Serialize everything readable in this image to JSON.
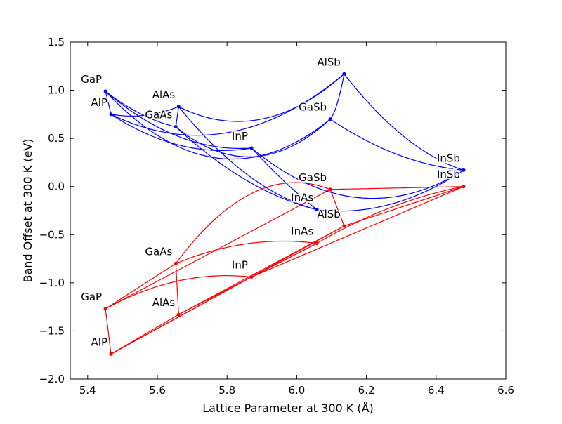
{
  "chart_data": {
    "type": "line",
    "title": "",
    "xlabel": "Lattice Parameter at 300 K (Å)",
    "ylabel": "Band Offset at 300 K (eV)",
    "xlim": [
      5.35,
      6.6
    ],
    "ylim": [
      -2.0,
      1.5
    ],
    "xticks": [
      "5.4",
      "5.6",
      "5.8",
      "6.0",
      "6.2",
      "6.4",
      "6.6"
    ],
    "yticks": [
      "−2.0",
      "−1.5",
      "−1.0",
      "−0.5",
      "0.0",
      "0.5",
      "1.0",
      "1.5"
    ],
    "xtick_values": [
      5.4,
      5.6,
      5.8,
      6.0,
      6.2,
      6.4,
      6.6
    ],
    "ytick_values": [
      -2.0,
      -1.5,
      -1.0,
      -0.5,
      0.0,
      0.5,
      1.0,
      1.5
    ],
    "grid": false,
    "colors": {
      "conduction": "#0000ff",
      "valence": "#ff0000"
    },
    "materials": [
      {
        "name": "GaP",
        "lattice": 5.451,
        "cb": 0.99,
        "vb": -1.27
      },
      {
        "name": "AlP",
        "lattice": 5.467,
        "cb": 0.75,
        "vb": -1.74
      },
      {
        "name": "AlAs",
        "lattice": 5.661,
        "cb": 0.83,
        "vb": -1.33
      },
      {
        "name": "GaAs",
        "lattice": 5.653,
        "cb": 0.62,
        "vb": -0.8
      },
      {
        "name": "InP",
        "lattice": 5.87,
        "cb": 0.4,
        "vb": -0.94
      },
      {
        "name": "InAs",
        "lattice": 6.058,
        "cb": -0.24,
        "vb": -0.59
      },
      {
        "name": "AlSb",
        "lattice": 6.136,
        "cb": 1.17,
        "vb": -0.41
      },
      {
        "name": "GaSb",
        "lattice": 6.096,
        "cb": 0.7,
        "vb": -0.03
      },
      {
        "name": "InSb",
        "lattice": 6.479,
        "cb": 0.17,
        "vb": 0.0
      }
    ],
    "alloys": [
      {
        "a": "AlAs",
        "b": "GaAs",
        "cb_bowing": 0.0,
        "vb_bowing": 0.0
      },
      {
        "a": "AlP",
        "b": "GaP",
        "cb_bowing": 0.0,
        "vb_bowing": 0.0
      },
      {
        "a": "GaP",
        "b": "InP",
        "cb_bowing": 0.7,
        "vb_bowing": -0.5
      },
      {
        "a": "AlP",
        "b": "InP",
        "cb_bowing": 0.6,
        "vb_bowing": 0.0
      },
      {
        "a": "GaAs",
        "b": "InAs",
        "cb_bowing": 0.5,
        "vb_bowing": -0.4
      },
      {
        "a": "AlAs",
        "b": "InAs",
        "cb_bowing": 0.7,
        "vb_bowing": 0.0
      },
      {
        "a": "GaSb",
        "b": "InSb",
        "cb_bowing": 0.4,
        "vb_bowing": 0.0
      },
      {
        "a": "AlSb",
        "b": "InSb",
        "cb_bowing": 0.6,
        "vb_bowing": 0.0
      },
      {
        "a": "AlSb",
        "b": "GaSb",
        "cb_bowing": 0.3,
        "vb_bowing": 0.0
      },
      {
        "a": "GaAs",
        "b": "GaP",
        "cb_bowing": 0.2,
        "vb_bowing": 0.0
      },
      {
        "a": "AlAs",
        "b": "AlP",
        "cb_bowing": 0.2,
        "vb_bowing": 0.0
      },
      {
        "a": "InAs",
        "b": "InP",
        "cb_bowing": 0.1,
        "vb_bowing": 0.0
      },
      {
        "a": "GaAs",
        "b": "GaSb",
        "cb_bowing": 1.4,
        "vb_bowing": -1.4
      },
      {
        "a": "AlAs",
        "b": "AlSb",
        "cb_bowing": 1.2,
        "vb_bowing": 0.0
      },
      {
        "a": "InAs",
        "b": "InSb",
        "cb_bowing": 0.6,
        "vb_bowing": -0.3
      },
      {
        "a": "GaP",
        "b": "GaSb",
        "cb_bowing": 2.2,
        "vb_bowing": 0.0
      },
      {
        "a": "AlP",
        "b": "AlSb",
        "cb_bowing": 1.6,
        "vb_bowing": 0.0
      },
      {
        "a": "InP",
        "b": "InSb",
        "cb_bowing": 1.6,
        "vb_bowing": 0.0
      }
    ]
  }
}
